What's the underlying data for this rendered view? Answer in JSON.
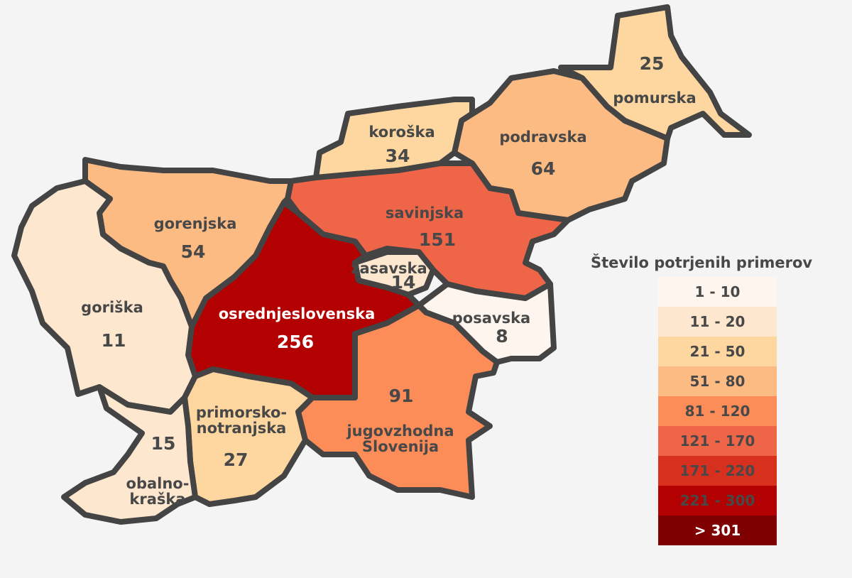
{
  "legend": {
    "title": "Število potrjenih primerov",
    "classes": [
      {
        "label": "1 - 10",
        "color": "#fef6ee"
      },
      {
        "label": "11 - 20",
        "color": "#fde8cf"
      },
      {
        "label": "21 - 50",
        "color": "#fdd6a0"
      },
      {
        "label": "51 - 80",
        "color": "#fdbb84"
      },
      {
        "label": "81 - 120",
        "color": "#fc8d59"
      },
      {
        "label": "121 - 170",
        "color": "#ef6548"
      },
      {
        "label": "171 - 220",
        "color": "#d7301f"
      },
      {
        "label": "221 - 300",
        "color": "#b30000"
      },
      {
        "label": "> 301",
        "color": "#7f0000"
      }
    ]
  },
  "regions": {
    "pomurska": {
      "name": "pomurska",
      "value": "25",
      "class": 2
    },
    "podravska": {
      "name": "podravska",
      "value": "64",
      "class": 3
    },
    "koroska": {
      "name": "koroška",
      "value": "34",
      "class": 2
    },
    "savinjska": {
      "name": "savinjska",
      "value": "151",
      "class": 5
    },
    "zasavska": {
      "name": "zasavska",
      "value": "14",
      "class": 1
    },
    "posavska": {
      "name": "posavska",
      "value": "8",
      "class": 0
    },
    "jugovzhodna": {
      "name": "jugovzhodna Slovenija",
      "value": "91",
      "class": 4
    },
    "osrednjeslovenska": {
      "name": "osrednjeslovenska",
      "value": "256",
      "class": 7
    },
    "gorenjska": {
      "name": "gorenjska",
      "value": "54",
      "class": 3
    },
    "goriska": {
      "name": "goriška",
      "value": "11",
      "class": 1
    },
    "primorsko": {
      "name": "primorsko-notranjska",
      "value": "27",
      "class": 2
    },
    "obalno": {
      "name": "obalno-kraška",
      "value": "15",
      "class": 1
    }
  },
  "outline_color": "#444444"
}
